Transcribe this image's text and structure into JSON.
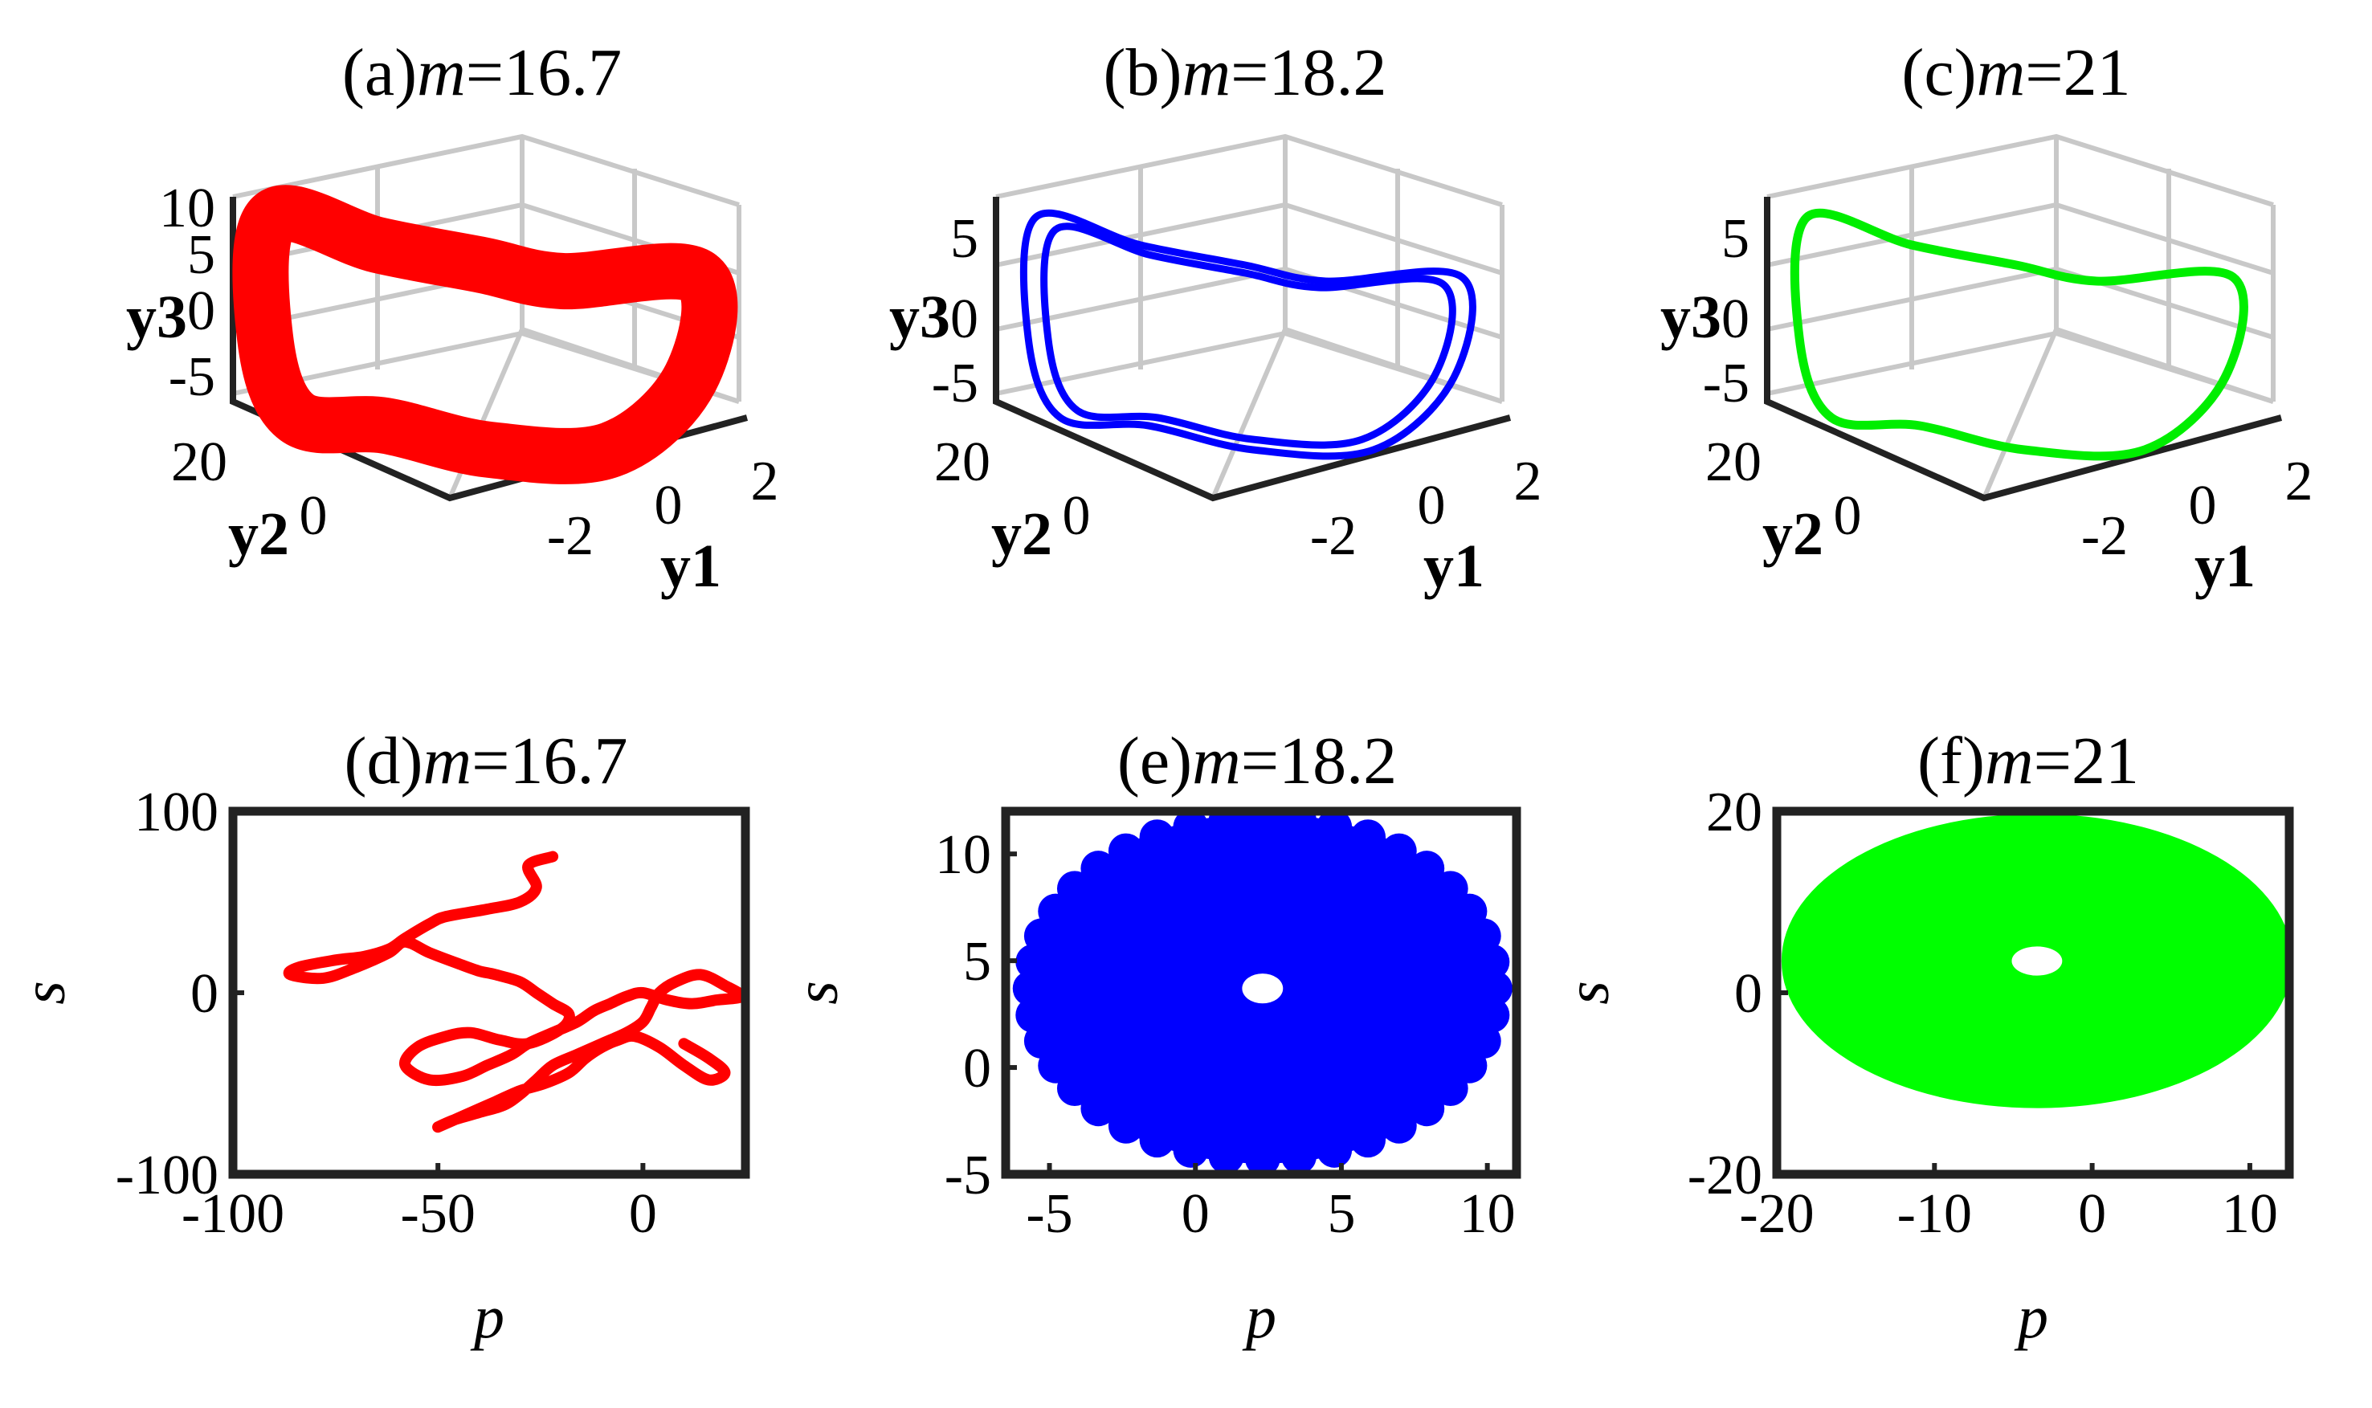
{
  "chart_data": [
    {
      "id": "a",
      "type": "line",
      "projection": "3d",
      "title_prefix": "(a)",
      "title_var": "m",
      "title_value": "=16.7",
      "xlabel": "y1",
      "ylabel": "y2",
      "zlabel": "y3",
      "xticks": [
        "-2",
        "0",
        "2"
      ],
      "yticks": [
        "20",
        "0"
      ],
      "zticks": [
        "10",
        "5",
        "0",
        "-5"
      ],
      "color": "#ff0000",
      "style": "thick-band",
      "series": [
        {
          "x": [
            -1.5,
            -0.3,
            1.0,
            1.5,
            1.2,
            0.4,
            -0.8,
            -1.8,
            -2.0,
            -1.5
          ],
          "y": [
            0,
            0,
            0,
            0,
            0,
            0,
            0,
            0,
            0,
            0
          ],
          "z": [
            8.5,
            6.0,
            4.5,
            2.0,
            -3.5,
            -5.0,
            -6.0,
            -5.5,
            2.0,
            8.5
          ]
        }
      ]
    },
    {
      "id": "b",
      "type": "line",
      "projection": "3d",
      "title_prefix": "(b)",
      "title_var": "m",
      "title_value": "=18.2",
      "xlabel": "y1",
      "ylabel": "y2",
      "zlabel": "y3",
      "xticks": [
        "-2",
        "0",
        "2"
      ],
      "yticks": [
        "20",
        "0"
      ],
      "zticks": [
        "5",
        "0",
        "-5"
      ],
      "color": "#0000ff",
      "style": "double-loop",
      "series": [
        {
          "x": [
            -1.6,
            -0.3,
            1.0,
            1.4,
            1.1,
            0.3,
            -0.9,
            -1.8,
            -1.9,
            -1.6
          ],
          "y": [
            0,
            0,
            0,
            0,
            0,
            0,
            0,
            0,
            0,
            0
          ],
          "z": [
            7.5,
            5.5,
            4.0,
            2.0,
            -3.5,
            -5.0,
            -6.0,
            -5.5,
            2.0,
            7.5
          ]
        }
      ]
    },
    {
      "id": "c",
      "type": "line",
      "projection": "3d",
      "title_prefix": "(c)",
      "title_var": "m",
      "title_value": "=21",
      "xlabel": "y1",
      "ylabel": "y2",
      "zlabel": "y3",
      "xticks": [
        "-2",
        "0",
        "2"
      ],
      "yticks": [
        "20",
        "0"
      ],
      "zticks": [
        "5",
        "0",
        "-5"
      ],
      "color": "#00ee00",
      "style": "single-loop",
      "series": [
        {
          "x": [
            -1.6,
            -0.3,
            1.0,
            1.4,
            1.1,
            0.3,
            -0.9,
            -1.8,
            -1.9,
            -1.6
          ],
          "y": [
            0,
            0,
            0,
            0,
            0,
            0,
            0,
            0,
            0,
            0
          ],
          "z": [
            8.0,
            6.0,
            4.5,
            2.0,
            -3.5,
            -5.0,
            -6.0,
            -5.5,
            2.0,
            8.0
          ]
        }
      ]
    },
    {
      "id": "d",
      "type": "scatter",
      "title_prefix": "(d)",
      "title_var": "m",
      "title_value": "=16.7",
      "xlabel": "p",
      "ylabel": "s",
      "xlim": [
        -100,
        25
      ],
      "ylim": [
        -100,
        100
      ],
      "xticks": [
        -100,
        -50,
        0
      ],
      "yticks": [
        100,
        0,
        -100
      ],
      "color": "#ff0000",
      "style": "wandering-curve",
      "series": [
        {
          "x": [
            -22,
            -28,
            -26,
            -30,
            -38,
            -48,
            -52,
            -58,
            -62,
            -68,
            -75,
            -84,
            -86,
            -78,
            -70,
            -62,
            -58,
            -52,
            -45,
            -40,
            -36,
            -30,
            -26,
            -22,
            -18,
            -20,
            -28,
            -35,
            -42,
            -48,
            -55,
            -58,
            -52,
            -44,
            -38,
            -32,
            -28,
            -22,
            -16,
            -12,
            -8,
            -4,
            0,
            6,
            12,
            18,
            24,
            20,
            14,
            8,
            4,
            2,
            0,
            -4,
            -10,
            -16,
            -22,
            -26,
            -30,
            -34,
            -40,
            -46,
            -50,
            -44,
            -36,
            -30,
            -24,
            -18,
            -14,
            -10,
            -6,
            -2,
            4,
            10,
            16,
            20,
            16,
            10
          ],
          "y": [
            75,
            70,
            58,
            50,
            46,
            42,
            38,
            30,
            24,
            20,
            18,
            14,
            10,
            8,
            14,
            22,
            28,
            22,
            16,
            12,
            10,
            6,
            0,
            -6,
            -12,
            -20,
            -28,
            -26,
            -22,
            -24,
            -30,
            -40,
            -48,
            -46,
            -40,
            -34,
            -28,
            -22,
            -16,
            -10,
            -6,
            -2,
            0,
            -4,
            -6,
            -4,
            -2,
            4,
            10,
            6,
            0,
            -8,
            -16,
            -22,
            -28,
            -34,
            -40,
            -48,
            -56,
            -62,
            -66,
            -70,
            -74,
            -68,
            -60,
            -54,
            -50,
            -44,
            -36,
            -30,
            -26,
            -24,
            -30,
            -40,
            -48,
            -44,
            -36,
            -28
          ]
        }
      ]
    },
    {
      "id": "e",
      "type": "scatter",
      "title_prefix": "(e)",
      "title_var": "m",
      "title_value": "=18.2",
      "xlabel": "p",
      "ylabel": "s",
      "xlim": [
        -6.5,
        11
      ],
      "ylim": [
        -5,
        12
      ],
      "xticks": [
        -5,
        0,
        5,
        10
      ],
      "yticks": [
        10,
        5,
        0,
        -5
      ],
      "color": "#0000ff",
      "style": "filled-ring",
      "ring": {
        "cx": 2.3,
        "cy": 3.7,
        "outer_rx": 8.2,
        "outer_ry": 8.2,
        "inner_rx": 0.7,
        "inner_ry": 0.7
      }
    },
    {
      "id": "f",
      "type": "scatter",
      "title_prefix": "(f)",
      "title_var": "m",
      "title_value": "=21",
      "xlabel": "p",
      "ylabel": "s",
      "xlim": [
        -20,
        12.5
      ],
      "ylim": [
        -20,
        20
      ],
      "xticks": [
        -20,
        -10,
        0,
        10
      ],
      "yticks": [
        20,
        0,
        -20
      ],
      "color": "#00ff00",
      "style": "filled-ring",
      "ring": {
        "cx": -3.5,
        "cy": 3.5,
        "outer_rx": 16.2,
        "outer_ry": 16.2,
        "inner_rx": 1.6,
        "inner_ry": 1.6
      }
    }
  ]
}
